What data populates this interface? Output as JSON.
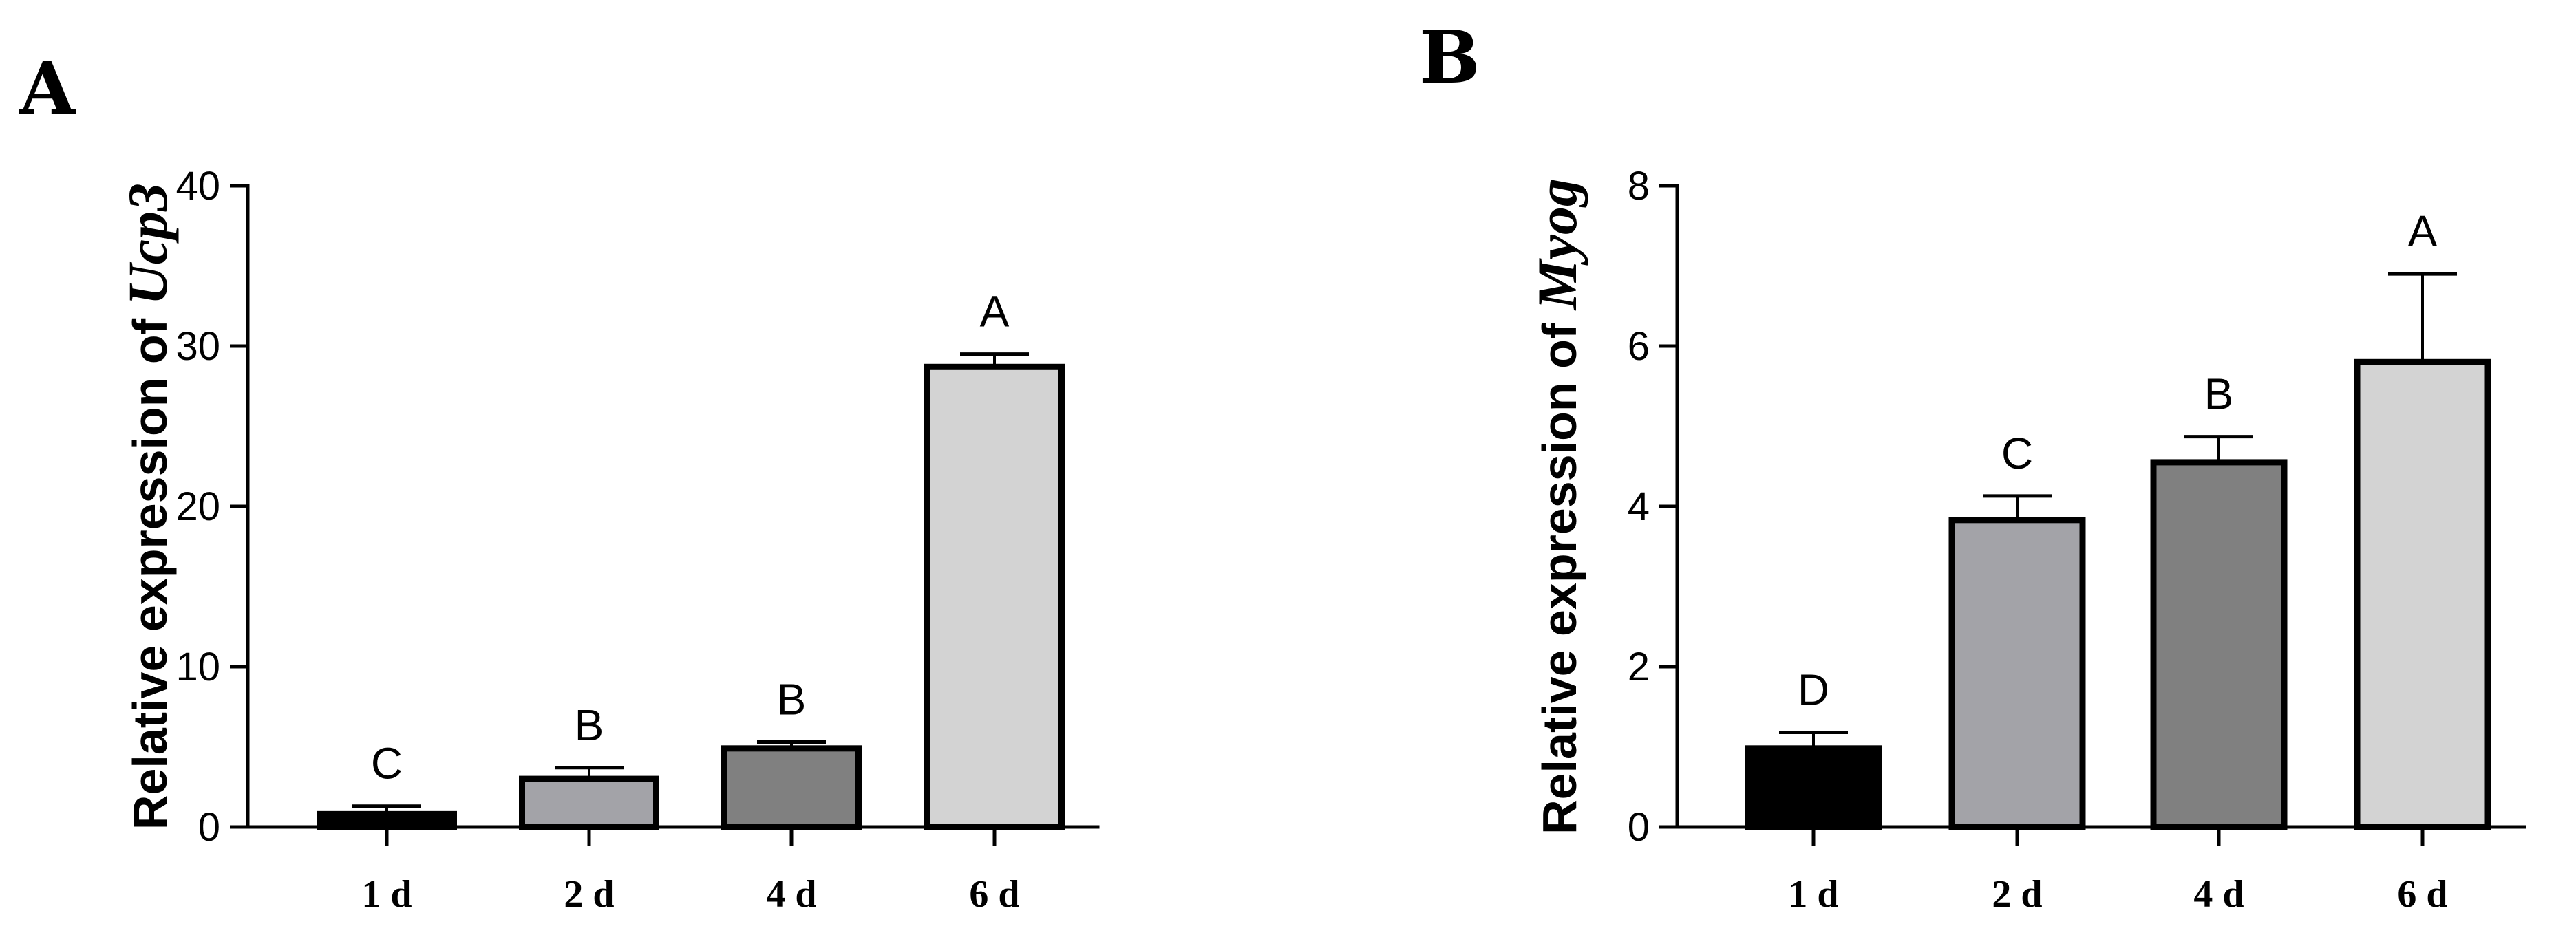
{
  "chart_data": [
    {
      "type": "bar",
      "panel_label": "A",
      "categories": [
        "1 d",
        "2 d",
        "4 d",
        "6 d"
      ],
      "values": [
        0.8,
        3.0,
        4.9,
        28.7
      ],
      "errors": [
        0.5,
        0.7,
        0.4,
        0.8
      ],
      "significance": [
        "C",
        "B",
        "B",
        "A"
      ],
      "bar_colors": [
        "#000000",
        "#a3a3a8",
        "#808080",
        "#d3d3d3"
      ],
      "ylabel": "Relative expression of ",
      "ylabel_gene": "Ucp3",
      "ylim": [
        0,
        40
      ],
      "yticks": [
        0,
        10,
        20,
        30,
        40
      ],
      "grid": false
    },
    {
      "type": "bar",
      "panel_label": "B",
      "categories": [
        "1 d",
        "2 d",
        "4 d",
        "6 d"
      ],
      "values": [
        0.98,
        3.83,
        4.55,
        5.8
      ],
      "errors": [
        0.2,
        0.3,
        0.32,
        1.1
      ],
      "significance": [
        "D",
        "C",
        "B",
        "A"
      ],
      "bar_colors": [
        "#000000",
        "#a3a3a8",
        "#808080",
        "#d3d3d3"
      ],
      "ylabel": "Relative expression of ",
      "ylabel_gene": "Myog",
      "ylim": [
        0,
        8
      ],
      "yticks": [
        0,
        2,
        4,
        6,
        8
      ],
      "grid": false
    }
  ]
}
